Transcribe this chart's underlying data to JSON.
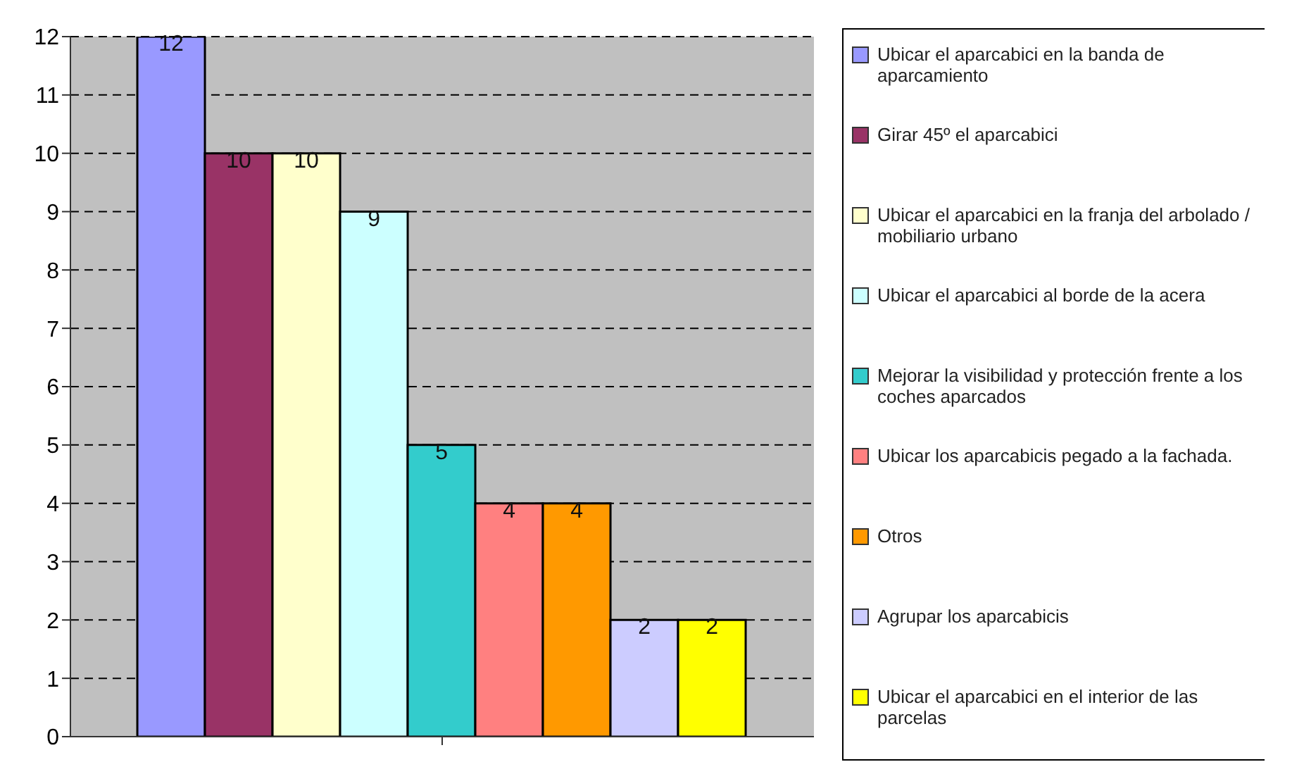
{
  "chart_data": {
    "type": "bar",
    "categories": [
      null
    ],
    "series": [
      {
        "name": "Ubicar el aparcabici en la banda de aparcamiento",
        "color": "#9999ff",
        "values": [
          12
        ]
      },
      {
        "name": "Girar 45º el aparcabici",
        "color": "#993366",
        "values": [
          10
        ]
      },
      {
        "name": "Ubicar el aparcabici en la franja del arbolado / mobiliario urbano",
        "color": "#ffffcc",
        "values": [
          10
        ]
      },
      {
        "name": "Ubicar el aparcabici al borde de la acera",
        "color": "#ccffff",
        "values": [
          9
        ]
      },
      {
        "name": "Mejorar la visibilidad y protección frente a los coches aparcados",
        "color": "#33cccc",
        "values": [
          5
        ]
      },
      {
        "name": "Ubicar los aparcabicis pegado a la fachada.",
        "color": "#ff8080",
        "values": [
          4
        ]
      },
      {
        "name": "Otros",
        "color": "#ff9900",
        "values": [
          4
        ]
      },
      {
        "name": "Agrupar los aparcabicis",
        "color": "#ccccff",
        "values": [
          2
        ]
      },
      {
        "name": "Ubicar el aparcabici en el interior de las parcelas",
        "color": "#ffff00",
        "values": [
          2
        ]
      }
    ],
    "ylim": [
      0,
      12
    ],
    "yticks": [
      0,
      1,
      2,
      3,
      4,
      5,
      6,
      7,
      8,
      9,
      10,
      11,
      12
    ],
    "grid": "y",
    "legend": "right",
    "data_labels": true
  }
}
